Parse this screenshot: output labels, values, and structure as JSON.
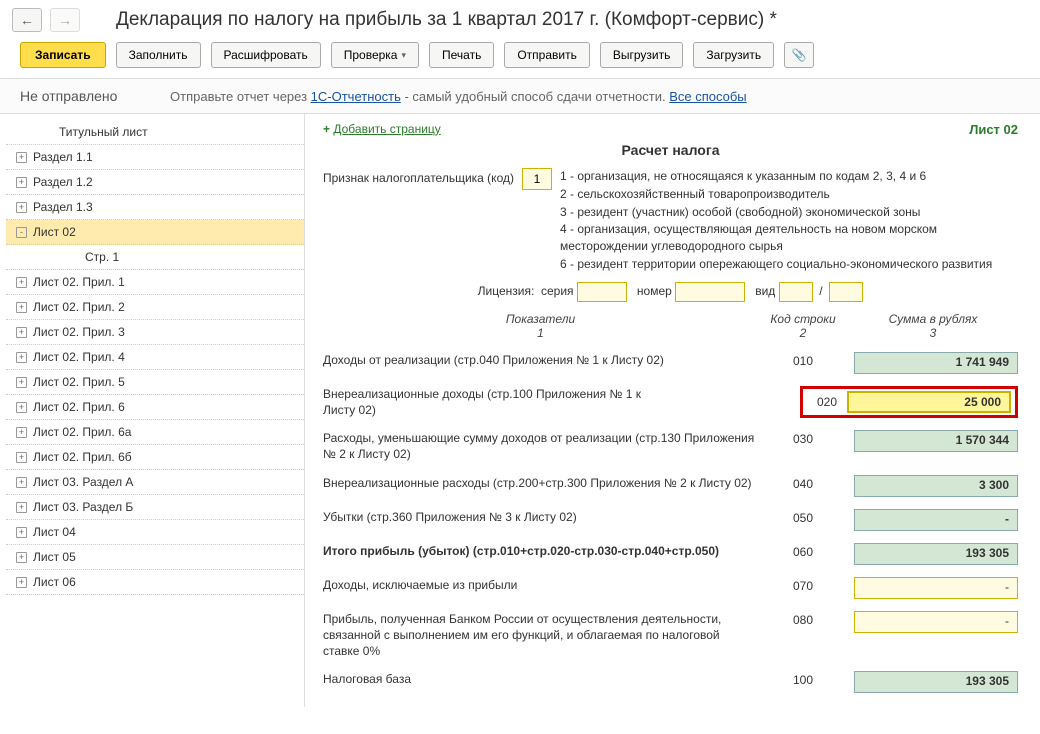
{
  "header": {
    "title": "Декларация по налогу на прибыль за 1 квартал 2017 г. (Комфорт-сервис) *"
  },
  "toolbar": {
    "record": "Записать",
    "fill": "Заполнить",
    "decode": "Расшифровать",
    "check": "Проверка",
    "print": "Печать",
    "send": "Отправить",
    "export": "Выгрузить",
    "import": "Загрузить"
  },
  "status": {
    "state": "Не отправлено",
    "prefix": "Отправьте отчет через ",
    "link1": "1С-Отчетность",
    "middle": " - самый удобный способ сдачи отчетности. ",
    "link2": "Все способы"
  },
  "sidebar": {
    "items": [
      {
        "label": "Титульный лист",
        "lvl": 1,
        "exp": ""
      },
      {
        "label": "Раздел 1.1",
        "lvl": 0,
        "exp": "+"
      },
      {
        "label": "Раздел 1.2",
        "lvl": 0,
        "exp": "+"
      },
      {
        "label": "Раздел 1.3",
        "lvl": 0,
        "exp": "+"
      },
      {
        "label": "Лист 02",
        "lvl": 0,
        "exp": "-",
        "active": true
      },
      {
        "label": "Стр. 1",
        "lvl": 2,
        "exp": ""
      },
      {
        "label": "Лист 02. Прил. 1",
        "lvl": 0,
        "exp": "+"
      },
      {
        "label": "Лист 02. Прил. 2",
        "lvl": 0,
        "exp": "+"
      },
      {
        "label": "Лист 02. Прил. 3",
        "lvl": 0,
        "exp": "+"
      },
      {
        "label": "Лист 02. Прил. 4",
        "lvl": 0,
        "exp": "+"
      },
      {
        "label": "Лист 02. Прил. 5",
        "lvl": 0,
        "exp": "+"
      },
      {
        "label": "Лист 02. Прил. 6",
        "lvl": 0,
        "exp": "+"
      },
      {
        "label": "Лист 02. Прил. 6а",
        "lvl": 0,
        "exp": "+"
      },
      {
        "label": "Лист 02. Прил. 6б",
        "lvl": 0,
        "exp": "+"
      },
      {
        "label": "Лист 03. Раздел А",
        "lvl": 0,
        "exp": "+"
      },
      {
        "label": "Лист 03. Раздел Б",
        "lvl": 0,
        "exp": "+"
      },
      {
        "label": "Лист 04",
        "lvl": 0,
        "exp": "+"
      },
      {
        "label": "Лист 05",
        "lvl": 0,
        "exp": "+"
      },
      {
        "label": "Лист 06",
        "lvl": 0,
        "exp": "+"
      }
    ]
  },
  "content": {
    "add_page": "Добавить страницу",
    "sheet_label": "Лист 02",
    "calc_title": "Расчет налога",
    "taxpayer_label": "Признак налогоплательщика (код)",
    "taxpayer_code": "1",
    "code_descriptions": [
      "1 - организация, не относящаяся к указанным по кодам 2, 3, 4 и 6",
      "2 - сельскохозяйственный товаропроизводитель",
      "3 - резидент (участник) особой (свободной) экономической зоны",
      "4 - организация, осуществляющая деятельность на новом морском месторождении углеводородного сырья",
      "6 - резидент территории опережающего социально-экономического развития"
    ],
    "license": {
      "label": "Лицензия:",
      "serial": "серия",
      "number": "номер",
      "type": "вид",
      "slash": "/"
    },
    "col_headers": {
      "c1a": "Показатели",
      "c1b": "1",
      "c2a": "Код строки",
      "c2b": "2",
      "c3a": "Сумма в рублях",
      "c3b": "3"
    },
    "rows": [
      {
        "desc": "Доходы от реализации (стр.040 Приложения № 1 к Листу 02)",
        "code": "010",
        "val": "1 741 949",
        "style": "green"
      },
      {
        "desc": "Внереализационные доходы (стр.100 Приложения № 1 к Листу 02)",
        "code": "020",
        "val": "25 000",
        "style": "highlight"
      },
      {
        "desc": "Расходы, уменьшающие сумму доходов от реализации (стр.130 Приложения № 2 к Листу 02)",
        "code": "030",
        "val": "1 570 344",
        "style": "green"
      },
      {
        "desc": "Внереализационные расходы (стр.200+стр.300 Приложения № 2 к Листу 02)",
        "code": "040",
        "val": "3 300",
        "style": "green"
      },
      {
        "desc": "Убытки (стр.360 Приложения № 3 к Листу 02)",
        "code": "050",
        "val": "-",
        "style": "green"
      },
      {
        "desc": "Итого прибыль (убыток)  (стр.010+стр.020-стр.030-стр.040+стр.050)",
        "code": "060",
        "val": "193 305",
        "style": "green",
        "bold": true
      },
      {
        "desc": "Доходы, исключаемые из прибыли",
        "code": "070",
        "val": "-",
        "style": "yellow"
      },
      {
        "desc": "Прибыль, полученная Банком России от осуществления деятельности, связанной с выполнением им его функций, и облагаемая по налоговой ставке 0%",
        "code": "080",
        "val": "-",
        "style": "yellow"
      },
      {
        "desc": "Налоговая база",
        "code": "100",
        "val": "193 305",
        "style": "green"
      }
    ]
  }
}
